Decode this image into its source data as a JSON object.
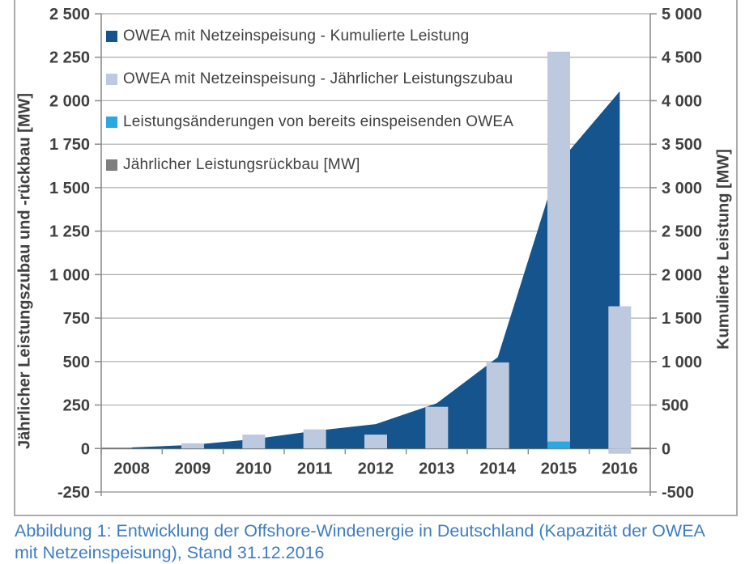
{
  "figure": {
    "caption": "Abbildung 1: Entwicklung der Offshore-Windenergie in Deutschland (Kapazität der OWEA mit Netzeinspeisung), Stand 31.12.2016"
  },
  "colors": {
    "cumulative_area": "#15548C",
    "annual_bar": "#BDC9DF",
    "power_change": "#29A9E0",
    "decommissioning": "#7F7F7F",
    "gridline": "#ACACAC",
    "zero_line": "#737373",
    "axis_text": "#404040",
    "caption_text": "#3E7DC1",
    "frame_border": "#ABABAB"
  },
  "chart_data": {
    "type": "combo-area-bar",
    "categories": [
      "2008",
      "2009",
      "2010",
      "2011",
      "2012",
      "2013",
      "2014",
      "2015",
      "2016"
    ],
    "series": [
      {
        "name": "OWEA mit Netzeinspeisung - Kumulierte Leistung",
        "type": "area",
        "axis": "right",
        "color": "#15548C",
        "values": [
          12,
          42,
          108,
          203,
          280,
          520,
          1049,
          3283,
          4108
        ]
      },
      {
        "name": "OWEA mit Netzeinspeisung - Jährlicher Leistungszubau",
        "type": "bar",
        "axis": "left",
        "color": "#BDC9DF",
        "values": [
          0,
          30,
          80,
          110,
          80,
          240,
          495,
          2282,
          818
        ]
      },
      {
        "name": "Leistungsänderungen von bereits einspeisenden OWEA",
        "type": "bar",
        "axis": "left",
        "color": "#29A9E0",
        "values": [
          0,
          0,
          0,
          0,
          0,
          0,
          0,
          40,
          -30
        ]
      },
      {
        "name": "Jährlicher Leistungsrückbau [MW]",
        "type": "bar",
        "axis": "left",
        "color": "#7F7F7F",
        "values": [
          0,
          0,
          0,
          0,
          0,
          0,
          0,
          0,
          0
        ]
      }
    ],
    "left_axis": {
      "label": "Jährlicher Leistungszubau und -rückbau [MW]",
      "min": -250,
      "max": 2500,
      "step": 250,
      "ticks": [
        2500,
        2250,
        2000,
        1750,
        1500,
        1250,
        1000,
        750,
        500,
        250,
        0,
        -250
      ]
    },
    "right_axis": {
      "label": "Kumulierte Leistung [MW]",
      "min": -500,
      "max": 5000,
      "step": 500,
      "ticks": [
        5000,
        4500,
        4000,
        3500,
        3000,
        2500,
        2000,
        1500,
        1000,
        500,
        0,
        -500
      ]
    },
    "grid": "horizontal",
    "legend_position": "top-left-inside"
  }
}
